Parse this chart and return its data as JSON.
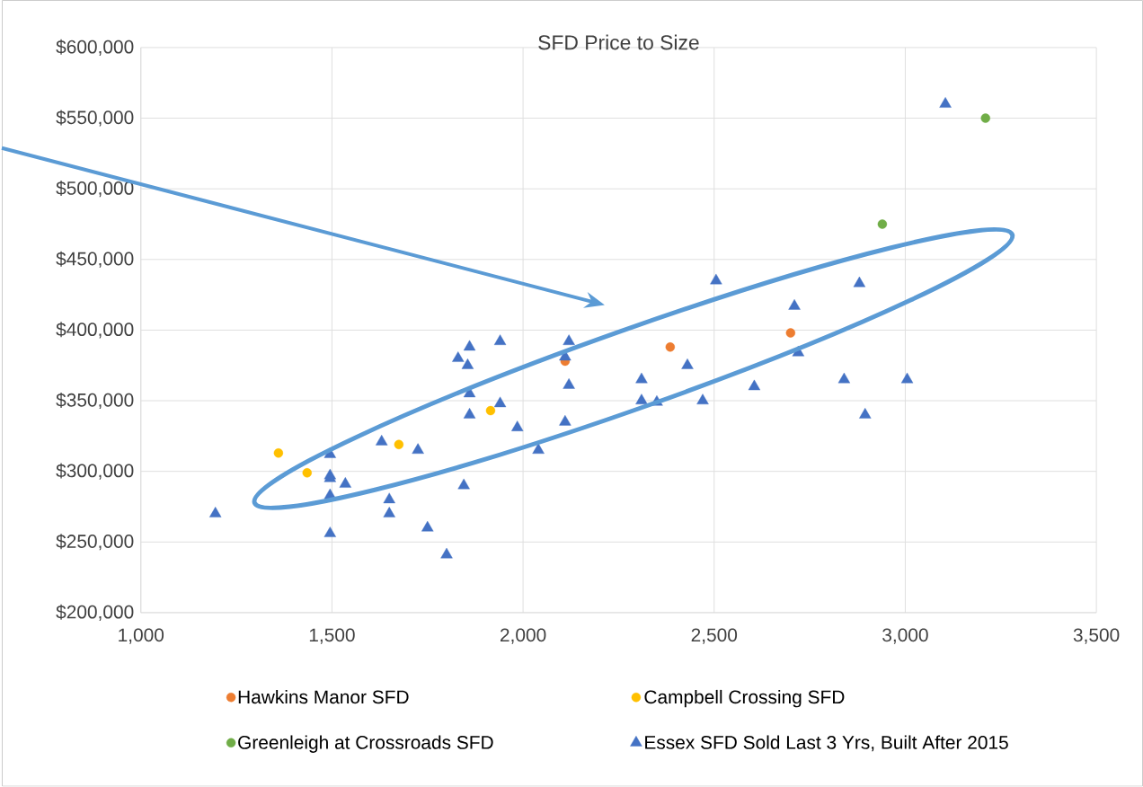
{
  "chart_data": {
    "type": "scatter",
    "title": "SFD Price to Size",
    "xlim": [
      1000,
      3500
    ],
    "ylim": [
      200000,
      600000
    ],
    "xticks": [
      {
        "value": 1000,
        "label": "1,000"
      },
      {
        "value": 1500,
        "label": "1,500"
      },
      {
        "value": 2000,
        "label": "2,000"
      },
      {
        "value": 2500,
        "label": "2,500"
      },
      {
        "value": 3000,
        "label": "3,000"
      },
      {
        "value": 3500,
        "label": "3,500"
      }
    ],
    "yticks": [
      {
        "value": 200000,
        "label": "$200,000"
      },
      {
        "value": 250000,
        "label": "$250,000"
      },
      {
        "value": 300000,
        "label": "$300,000"
      },
      {
        "value": 350000,
        "label": "$350,000"
      },
      {
        "value": 400000,
        "label": "$400,000"
      },
      {
        "value": 450000,
        "label": "$450,000"
      },
      {
        "value": 500000,
        "label": "$500,000"
      },
      {
        "value": 550000,
        "label": "$550,000"
      },
      {
        "value": 600000,
        "label": "$600,000"
      }
    ],
    "grid": true,
    "legend": "bottom",
    "series": [
      {
        "name": "Hawkins Manor SFD",
        "color": "#ed7d31",
        "marker": "circle",
        "x": [
          2110,
          2385,
          2700
        ],
        "values": [
          378000,
          388000,
          398000
        ]
      },
      {
        "name": "Campbell Crossing SFD",
        "color": "#ffc000",
        "marker": "circle",
        "x": [
          1360,
          1435,
          1675,
          1915
        ],
        "values": [
          313000,
          299000,
          319000,
          343000
        ]
      },
      {
        "name": "Greenleigh at Crossroads SFD",
        "color": "#70ad47",
        "marker": "circle",
        "x": [
          2940,
          3210
        ],
        "values": [
          475000,
          550000
        ]
      },
      {
        "name": "Essex SFD Sold Last 3 Yrs, Built After 2015",
        "color": "#4472c4",
        "marker": "triangle",
        "x": [
          1195,
          1495,
          1495,
          1495,
          1535,
          1495,
          1495,
          1630,
          1725,
          1650,
          1650,
          1750,
          1800,
          1845,
          1830,
          1860,
          1855,
          1860,
          1860,
          1940,
          1940,
          1985,
          2040,
          2110,
          2120,
          2120,
          2110,
          2310,
          2310,
          2350,
          2430,
          2470,
          2505,
          2605,
          2710,
          2720,
          3105,
          2880,
          2840,
          3005,
          2895
        ],
        "values": [
          270000,
          312000,
          297000,
          295000,
          291000,
          283000,
          256000,
          321000,
          315000,
          280000,
          270000,
          260000,
          241000,
          290000,
          380000,
          388000,
          375000,
          355000,
          340000,
          392000,
          348000,
          331000,
          315000,
          335000,
          361000,
          392000,
          381000,
          365000,
          350000,
          349000,
          375000,
          350000,
          435000,
          360000,
          417000,
          384000,
          560000,
          433000,
          365000,
          365000,
          340000
        ]
      }
    ]
  }
}
